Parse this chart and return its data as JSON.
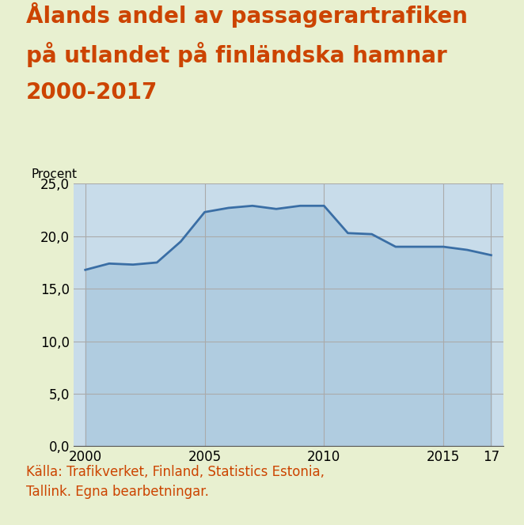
{
  "title_line1": "Ålands andel av passagerartrafiken",
  "title_line2": "på utlandet på finländska hamnar",
  "title_line3": "2000-2017",
  "ylabel": "Procent",
  "source_text": "Källa: Trafikverket, Finland, Statistics Estonia,\nTallink. Egna bearbetningar.",
  "background_color": "#e8f0d0",
  "plot_background_color": "#c8dcea",
  "title_color": "#cc4400",
  "source_color": "#cc4400",
  "line_color": "#3a6ea5",
  "fill_color": "#b0cce0",
  "years": [
    2000,
    2001,
    2002,
    2003,
    2004,
    2005,
    2006,
    2007,
    2008,
    2009,
    2010,
    2011,
    2012,
    2013,
    2014,
    2015,
    2016,
    2017
  ],
  "values": [
    16.8,
    17.4,
    17.3,
    17.5,
    19.5,
    22.3,
    22.7,
    22.9,
    22.6,
    22.9,
    22.9,
    20.3,
    20.2,
    19.0,
    19.0,
    19.0,
    18.7,
    18.2
  ],
  "ylim": [
    0,
    25
  ],
  "yticks": [
    0.0,
    5.0,
    10.0,
    15.0,
    20.0,
    25.0
  ],
  "xticks": [
    2000,
    2005,
    2010,
    2015,
    2017
  ],
  "xtick_labels": [
    "2000",
    "2005",
    "2010",
    "2015",
    "17"
  ],
  "grid_color": "#aaaaaa",
  "ylabel_fontsize": 11,
  "title_fontsize": 20,
  "tick_fontsize": 12,
  "source_fontsize": 12
}
